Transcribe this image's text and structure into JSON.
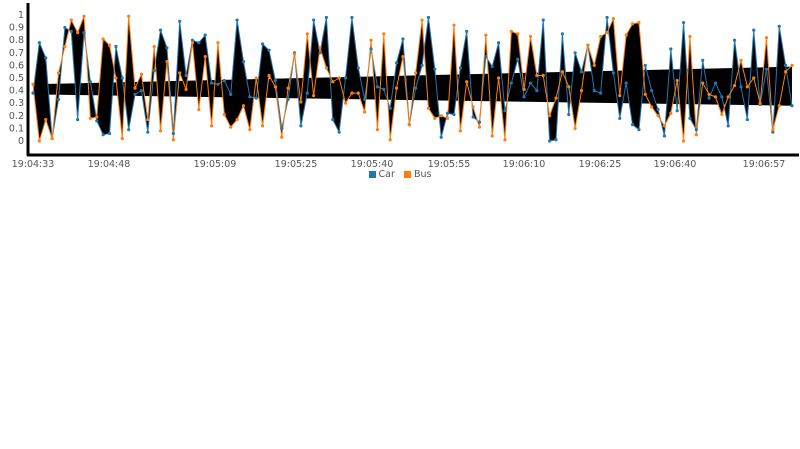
{
  "chart_data": {
    "type": "line",
    "title": "",
    "xlabel": "",
    "ylabel": "",
    "ylim": [
      0,
      1
    ],
    "grid": false,
    "legend_position": "bottom",
    "y_ticks": [
      "0",
      "0.1",
      "0.2",
      "0.3",
      "0.4",
      "0.5",
      "0.6",
      "0.7",
      "0.8",
      "0.9",
      "1"
    ],
    "x_tick_labels": [
      "19:04:33",
      "19:04:48",
      "19:05:09",
      "19:05:25",
      "19:05:40",
      "19:05:55",
      "19:06:10",
      "19:06:25",
      "19:06:40",
      "19:06:57"
    ],
    "band": {
      "left_low": 0.37,
      "left_high": 0.45,
      "right_low": 0.28,
      "right_high": 0.59,
      "color": "#000000"
    },
    "series": [
      {
        "name": "Car",
        "color": "#1f77b4",
        "values": [
          0.38,
          0.78,
          0.66,
          0.02,
          0.33,
          0.9,
          0.87,
          0.17,
          0.86,
          0.47,
          0.16,
          0.05,
          0.06,
          0.75,
          0.5,
          0.09,
          0.37,
          0.4,
          0.07,
          0.56,
          0.88,
          0.74,
          0.06,
          0.95,
          0.52,
          0.8,
          0.78,
          0.84,
          0.46,
          0.45,
          0.48,
          0.37,
          0.96,
          0.63,
          0.35,
          0.34,
          0.77,
          0.72,
          0.48,
          0.1,
          0.33,
          0.7,
          0.12,
          0.38,
          0.96,
          0.7,
          0.98,
          0.17,
          0.07,
          0.5,
          0.98,
          0.58,
          0.33,
          0.73,
          0.43,
          0.41,
          0.26,
          0.62,
          0.81,
          0.13,
          0.42,
          0.6,
          0.98,
          0.57,
          0.03,
          0.22,
          0.21,
          0.58,
          0.87,
          0.19,
          0.15,
          0.67,
          0.59,
          0.78,
          0.24,
          0.46,
          0.65,
          0.35,
          0.46,
          0.4,
          0.96,
          0.0,
          0.01,
          0.85,
          0.21,
          0.7,
          0.55,
          0.76,
          0.4,
          0.38,
          0.98,
          0.54,
          0.18,
          0.46,
          0.13,
          0.09,
          0.6,
          0.4,
          0.25,
          0.04,
          0.73,
          0.24,
          0.94,
          0.18,
          0.09,
          0.64,
          0.34,
          0.46,
          0.35,
          0.12,
          0.8,
          0.43,
          0.17,
          0.88,
          0.29,
          0.57,
          0.07,
          0.91,
          0.6,
          0.28
        ]
      },
      {
        "name": "Bus",
        "color": "#ff7f0e",
        "values": [
          0.45,
          0.0,
          0.17,
          0.02,
          0.54,
          0.75,
          0.96,
          0.86,
          0.99,
          0.18,
          0.19,
          0.81,
          0.76,
          0.5,
          0.02,
          0.99,
          0.42,
          0.53,
          0.17,
          0.75,
          0.08,
          0.63,
          0.01,
          0.54,
          0.41,
          0.78,
          0.25,
          0.67,
          0.12,
          0.78,
          0.21,
          0.11,
          0.17,
          0.28,
          0.09,
          0.5,
          0.12,
          0.52,
          0.43,
          0.03,
          0.42,
          0.69,
          0.31,
          0.85,
          0.36,
          0.74,
          0.58,
          0.47,
          0.5,
          0.3,
          0.38,
          0.38,
          0.23,
          0.8,
          0.09,
          0.85,
          0.01,
          0.42,
          0.67,
          0.13,
          0.54,
          0.96,
          0.26,
          0.18,
          0.2,
          0.18,
          0.92,
          0.08,
          0.47,
          0.27,
          0.11,
          0.84,
          0.04,
          0.5,
          0.01,
          0.87,
          0.85,
          0.41,
          0.83,
          0.52,
          0.52,
          0.2,
          0.34,
          0.55,
          0.43,
          0.1,
          0.4,
          0.76,
          0.6,
          0.83,
          0.86,
          0.97,
          0.36,
          0.84,
          0.93,
          0.94,
          0.37,
          0.27,
          0.2,
          0.12,
          0.22,
          0.48,
          0.0,
          0.83,
          0.05,
          0.46,
          0.37,
          0.35,
          0.21,
          0.35,
          0.44,
          0.64,
          0.43,
          0.5,
          0.3,
          0.82,
          0.09,
          0.28,
          0.55,
          0.6
        ]
      }
    ]
  },
  "legend": {
    "items": [
      {
        "label": "Car",
        "color": "#1f77b4"
      },
      {
        "label": "Bus",
        "color": "#ff7f0e"
      }
    ]
  }
}
